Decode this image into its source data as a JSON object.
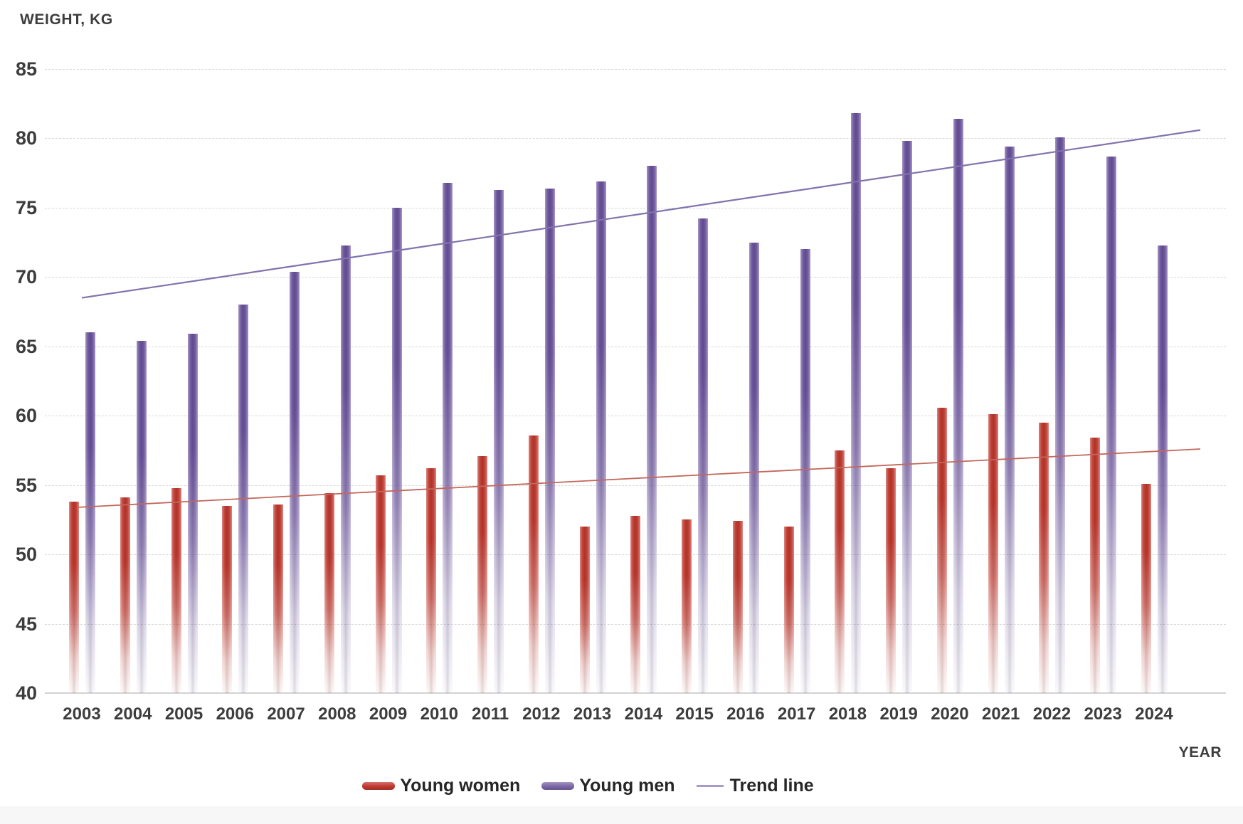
{
  "page": {
    "background": "#ffffff",
    "footer_strip_color": "#f7f7f7"
  },
  "chart_data": {
    "type": "bar",
    "title": "",
    "ylabel": "WEIGHT, KG",
    "xlabel": "YEAR",
    "ylim": [
      40,
      85
    ],
    "ytick_step": 5,
    "yticks": [
      85,
      80,
      75,
      70,
      65,
      60,
      55,
      50,
      45,
      40
    ],
    "grid": "horizontal-dashed",
    "legend_position": "bottom-center",
    "categories": [
      "2003",
      "2004",
      "2005",
      "2006",
      "2007",
      "2008",
      "2009",
      "2010",
      "2011",
      "2012",
      "2013",
      "2014",
      "2015",
      "2016",
      "2017",
      "2018",
      "2019",
      "2020",
      "2021",
      "2022",
      "2023",
      "2024"
    ],
    "series": [
      {
        "name": "Young women",
        "color": "#c0392f",
        "values": [
          53.8,
          54.1,
          54.8,
          53.5,
          53.6,
          54.4,
          55.7,
          56.2,
          57.1,
          58.6,
          52.0,
          52.8,
          52.5,
          52.4,
          52.0,
          57.5,
          56.2,
          60.6,
          60.1,
          59.5,
          58.4,
          55.1
        ]
      },
      {
        "name": "Young men",
        "color": "#6b539d",
        "values": [
          66.0,
          65.4,
          65.9,
          68.0,
          70.4,
          72.3,
          75.0,
          76.8,
          76.3,
          76.4,
          76.9,
          78.0,
          74.2,
          72.5,
          72.0,
          81.8,
          79.8,
          81.4,
          79.4,
          80.1,
          78.7,
          72.3
        ]
      }
    ],
    "trend_lines": [
      {
        "name": "Trend line",
        "series": "Young men",
        "color": "#8173ad",
        "start_year": "2003",
        "end_year": "2024",
        "start_value": 68.5,
        "end_value": 80.6
      },
      {
        "name": "Trend line",
        "series": "Young women",
        "color": "#c2675c",
        "start_year": "2003",
        "end_year": "2024",
        "start_value": 53.4,
        "end_value": 57.6
      }
    ],
    "legend": [
      {
        "label": "Young women",
        "swatch": "bar",
        "color": "#c0392f"
      },
      {
        "label": "Young men",
        "swatch": "bar",
        "color": "#7c68a8"
      },
      {
        "label": "Trend line",
        "swatch": "line",
        "color": "#a99bc7"
      }
    ]
  }
}
